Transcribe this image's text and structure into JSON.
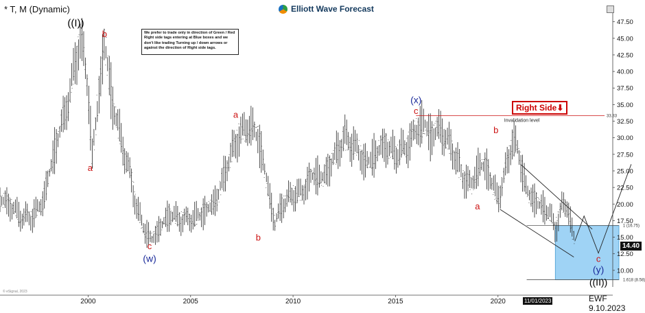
{
  "header": {
    "symbol": "* T, M (Dynamic)",
    "brand": "Elliott Wave Forecast"
  },
  "note": "We prefer to trade only in direction of Green / Red Right side tags entering at Blue boxes and we don't like trading Turning up / down arrows or against the direction of Right side tags.",
  "right_side_label": "Right Side",
  "footer": {
    "watermark": "EWF 9.10.2023",
    "cursor_date": "11/01/2023",
    "copyright": "© eSignal, 2023",
    "current_price": "14.40"
  },
  "colors": {
    "red_label": "#cc1111",
    "blue_label": "#1a2a9a",
    "blue_box": "#9fd3f5",
    "bars": "#222222"
  },
  "chart_data": {
    "type": "ohlc-bar",
    "ylim": [
      7.5,
      48.5
    ],
    "y_ticks": [
      10.0,
      12.5,
      15.0,
      17.5,
      20.0,
      22.5,
      25.0,
      27.5,
      30.0,
      32.5,
      35.0,
      37.5,
      40.0,
      42.5,
      45.0,
      47.5
    ],
    "x_ticks": [
      "2000",
      "2005",
      "2010",
      "2015",
      "2020"
    ],
    "x_tick_years": [
      2000,
      2005,
      2010,
      2015,
      2020
    ],
    "xlim": [
      1995.7,
      2025.6
    ],
    "price_path": [
      [
        1995.7,
        20.8
      ],
      [
        1996.3,
        19.5
      ],
      [
        1996.8,
        18.0
      ],
      [
        1997.2,
        17.8
      ],
      [
        1997.8,
        20.5
      ],
      [
        1998.4,
        28.5
      ],
      [
        1998.9,
        34.0
      ],
      [
        1999.3,
        40.0
      ],
      [
        1999.6,
        45.0
      ],
      [
        2000.0,
        38.0
      ],
      [
        2000.2,
        27.0
      ],
      [
        2000.5,
        36.0
      ],
      [
        2000.8,
        44.5
      ],
      [
        2001.2,
        35.0
      ],
      [
        2001.6,
        30.0
      ],
      [
        2002.0,
        25.0
      ],
      [
        2002.4,
        19.0
      ],
      [
        2002.8,
        16.0
      ],
      [
        2003.1,
        14.5
      ],
      [
        2003.5,
        16.5
      ],
      [
        2004.0,
        18.5
      ],
      [
        2004.6,
        17.5
      ],
      [
        2005.2,
        18.0
      ],
      [
        2005.8,
        19.0
      ],
      [
        2006.3,
        21.0
      ],
      [
        2006.8,
        26.0
      ],
      [
        2007.3,
        30.0
      ],
      [
        2007.8,
        32.0
      ],
      [
        2008.3,
        30.0
      ],
      [
        2008.7,
        24.0
      ],
      [
        2009.1,
        17.0
      ],
      [
        2009.5,
        20.0
      ],
      [
        2010.0,
        21.5
      ],
      [
        2010.5,
        22.0
      ],
      [
        2011.0,
        24.5
      ],
      [
        2011.5,
        24.0
      ],
      [
        2012.0,
        27.0
      ],
      [
        2012.5,
        30.0
      ],
      [
        2013.0,
        29.0
      ],
      [
        2013.5,
        26.0
      ],
      [
        2014.0,
        27.5
      ],
      [
        2014.5,
        29.0
      ],
      [
        2015.0,
        27.5
      ],
      [
        2015.5,
        28.5
      ],
      [
        2016.0,
        31.0
      ],
      [
        2016.4,
        32.5
      ],
      [
        2016.7,
        30.0
      ],
      [
        2017.2,
        31.5
      ],
      [
        2017.8,
        28.0
      ],
      [
        2018.3,
        24.0
      ],
      [
        2018.7,
        23.0
      ],
      [
        2019.1,
        26.0
      ],
      [
        2019.5,
        25.0
      ],
      [
        2019.8,
        22.5
      ],
      [
        2020.0,
        21.0
      ],
      [
        2020.3,
        24.0
      ],
      [
        2020.7,
        29.5
      ],
      [
        2021.0,
        28.0
      ],
      [
        2021.4,
        22.0
      ],
      [
        2021.8,
        20.5
      ],
      [
        2022.1,
        19.5
      ],
      [
        2022.5,
        19.0
      ],
      [
        2022.8,
        16.0
      ],
      [
        2023.1,
        19.5
      ],
      [
        2023.4,
        20.0
      ],
      [
        2023.6,
        16.0
      ],
      [
        2023.75,
        14.4
      ]
    ],
    "wave_labels": [
      {
        "text": "((I))",
        "x": 1999.4,
        "y": 46.8,
        "color": "black",
        "size": 15
      },
      {
        "text": "a",
        "x": 2000.1,
        "y": 25.0,
        "color": "red",
        "size": 13
      },
      {
        "text": "b",
        "x": 2000.8,
        "y": 45.2,
        "color": "red",
        "size": 13
      },
      {
        "text": "c",
        "x": 2003.0,
        "y": 13.2,
        "color": "red",
        "size": 13
      },
      {
        "text": "(w)",
        "x": 2003.0,
        "y": 11.3,
        "color": "blue",
        "size": 14
      },
      {
        "text": "a",
        "x": 2007.2,
        "y": 33.0,
        "color": "red",
        "size": 13
      },
      {
        "text": "b",
        "x": 2008.3,
        "y": 14.5,
        "color": "red",
        "size": 13
      },
      {
        "text": "(x)",
        "x": 2016.0,
        "y": 35.2,
        "color": "blue",
        "size": 14
      },
      {
        "text": "c",
        "x": 2016.0,
        "y": 33.6,
        "color": "red",
        "size": 13
      },
      {
        "text": "b",
        "x": 2019.9,
        "y": 30.7,
        "color": "red",
        "size": 13
      },
      {
        "text": "a",
        "x": 2019.0,
        "y": 19.2,
        "color": "red",
        "size": 13
      },
      {
        "text": "c",
        "x": 2024.9,
        "y": 11.3,
        "color": "red",
        "size": 13
      },
      {
        "text": "(y)",
        "x": 2024.9,
        "y": 9.6,
        "color": "blue",
        "size": 14
      },
      {
        "text": "((II))",
        "x": 2024.9,
        "y": 7.7,
        "color": "black",
        "size": 14
      }
    ],
    "invalidation": {
      "from_x": 2016.0,
      "to_x": 2025.2,
      "y": 33.33,
      "label": "Invalidation level",
      "value_label": "33.33"
    },
    "blue_box": {
      "x0": 2022.8,
      "x1": 2025.9,
      "y_top": 16.75,
      "y_bottom": 8.58
    },
    "fib_levels": [
      {
        "label": "1 (16.75)",
        "y": 16.75
      },
      {
        "label": "1.618 (8.58)",
        "y": 8.58
      }
    ],
    "channel": [
      [
        [
          2021.1,
          26.0
        ],
        [
          2024.6,
          16.2
        ]
      ],
      [
        [
          2020.1,
          19.2
        ],
        [
          2023.7,
          12.0
        ]
      ]
    ],
    "projection": [
      [
        2023.75,
        14.4
      ],
      [
        2024.2,
        18.2
      ],
      [
        2024.9,
        12.6
      ],
      [
        2026.5,
        26.0
      ]
    ]
  }
}
